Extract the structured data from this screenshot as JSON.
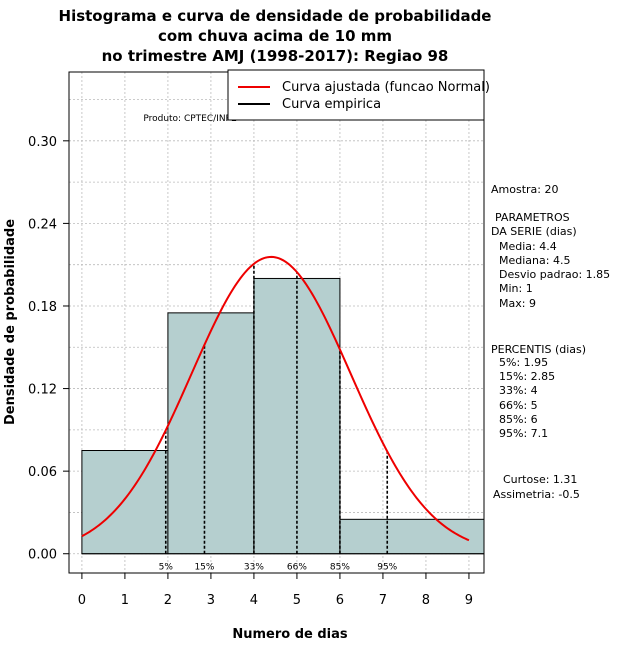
{
  "chart_data": {
    "type": "bar",
    "title_lines": [
      "Histograma e curva de densidade de probabilidade",
      "com chuva acima de 10 mm",
      "no trimestre AMJ (1998-2017): Regiao 98"
    ],
    "xlabel": "Numero de dias",
    "ylabel": "Densidade de probabilidade",
    "xlim": [
      -0.3,
      9.35
    ],
    "ylim": [
      -0.014,
      0.35
    ],
    "x_ticks": [
      0,
      1,
      2,
      3,
      4,
      5,
      6,
      7,
      8,
      9
    ],
    "y_ticks": [
      0.0,
      0.06,
      0.12,
      0.18,
      0.24,
      0.3
    ],
    "y_tick_labels": [
      "0.00",
      "0.06",
      "0.12",
      "0.18",
      "0.24",
      "0.30"
    ],
    "grid": true,
    "histogram": [
      {
        "from": 0,
        "to": 2,
        "density": 0.075
      },
      {
        "from": 2,
        "to": 4,
        "density": 0.175
      },
      {
        "from": 4,
        "to": 6,
        "density": 0.2
      },
      {
        "from": 6,
        "to": 9.35,
        "density": 0.025
      }
    ],
    "normal_fit": {
      "mean": 4.4,
      "sd": 1.85,
      "from": 0,
      "to": 9
    },
    "percentile_markers": [
      {
        "label": "5%",
        "x": 1.95
      },
      {
        "label": "15%",
        "x": 2.85
      },
      {
        "label": "33%",
        "x": 4.0
      },
      {
        "label": "66%",
        "x": 5.0
      },
      {
        "label": "85%",
        "x": 6.0
      },
      {
        "label": "95%",
        "x": 7.1
      }
    ],
    "legend": [
      {
        "label": "Curva ajustada (funcao Normal)",
        "color": "#ee0000"
      },
      {
        "label": "Curva empirica",
        "color": "#000000"
      }
    ],
    "legend_position": "top-right",
    "product_label": "Produto: CPTEC/INPE"
  },
  "side_panel": {
    "sample": "Amostra: 20",
    "params_header": [
      "PARAMETROS",
      "DA SERIE (dias)"
    ],
    "params": [
      "Media: 4.4",
      "Mediana: 4.5",
      "Desvio padrao: 1.85",
      "Min: 1",
      "Max: 9"
    ],
    "percentis_header": "PERCENTIS (dias)",
    "percentis": [
      "5%: 1.95",
      "15%: 2.85",
      "33%: 4",
      "66%: 5",
      "85%: 6",
      "95%: 7.1"
    ],
    "kurtosis": "Curtose: 1.31",
    "skewness": "Assimetria: -0.5"
  },
  "colors": {
    "bar_fill": "#b5cfcf",
    "curve": "#ee0000",
    "grid": "#bbbbbb"
  }
}
